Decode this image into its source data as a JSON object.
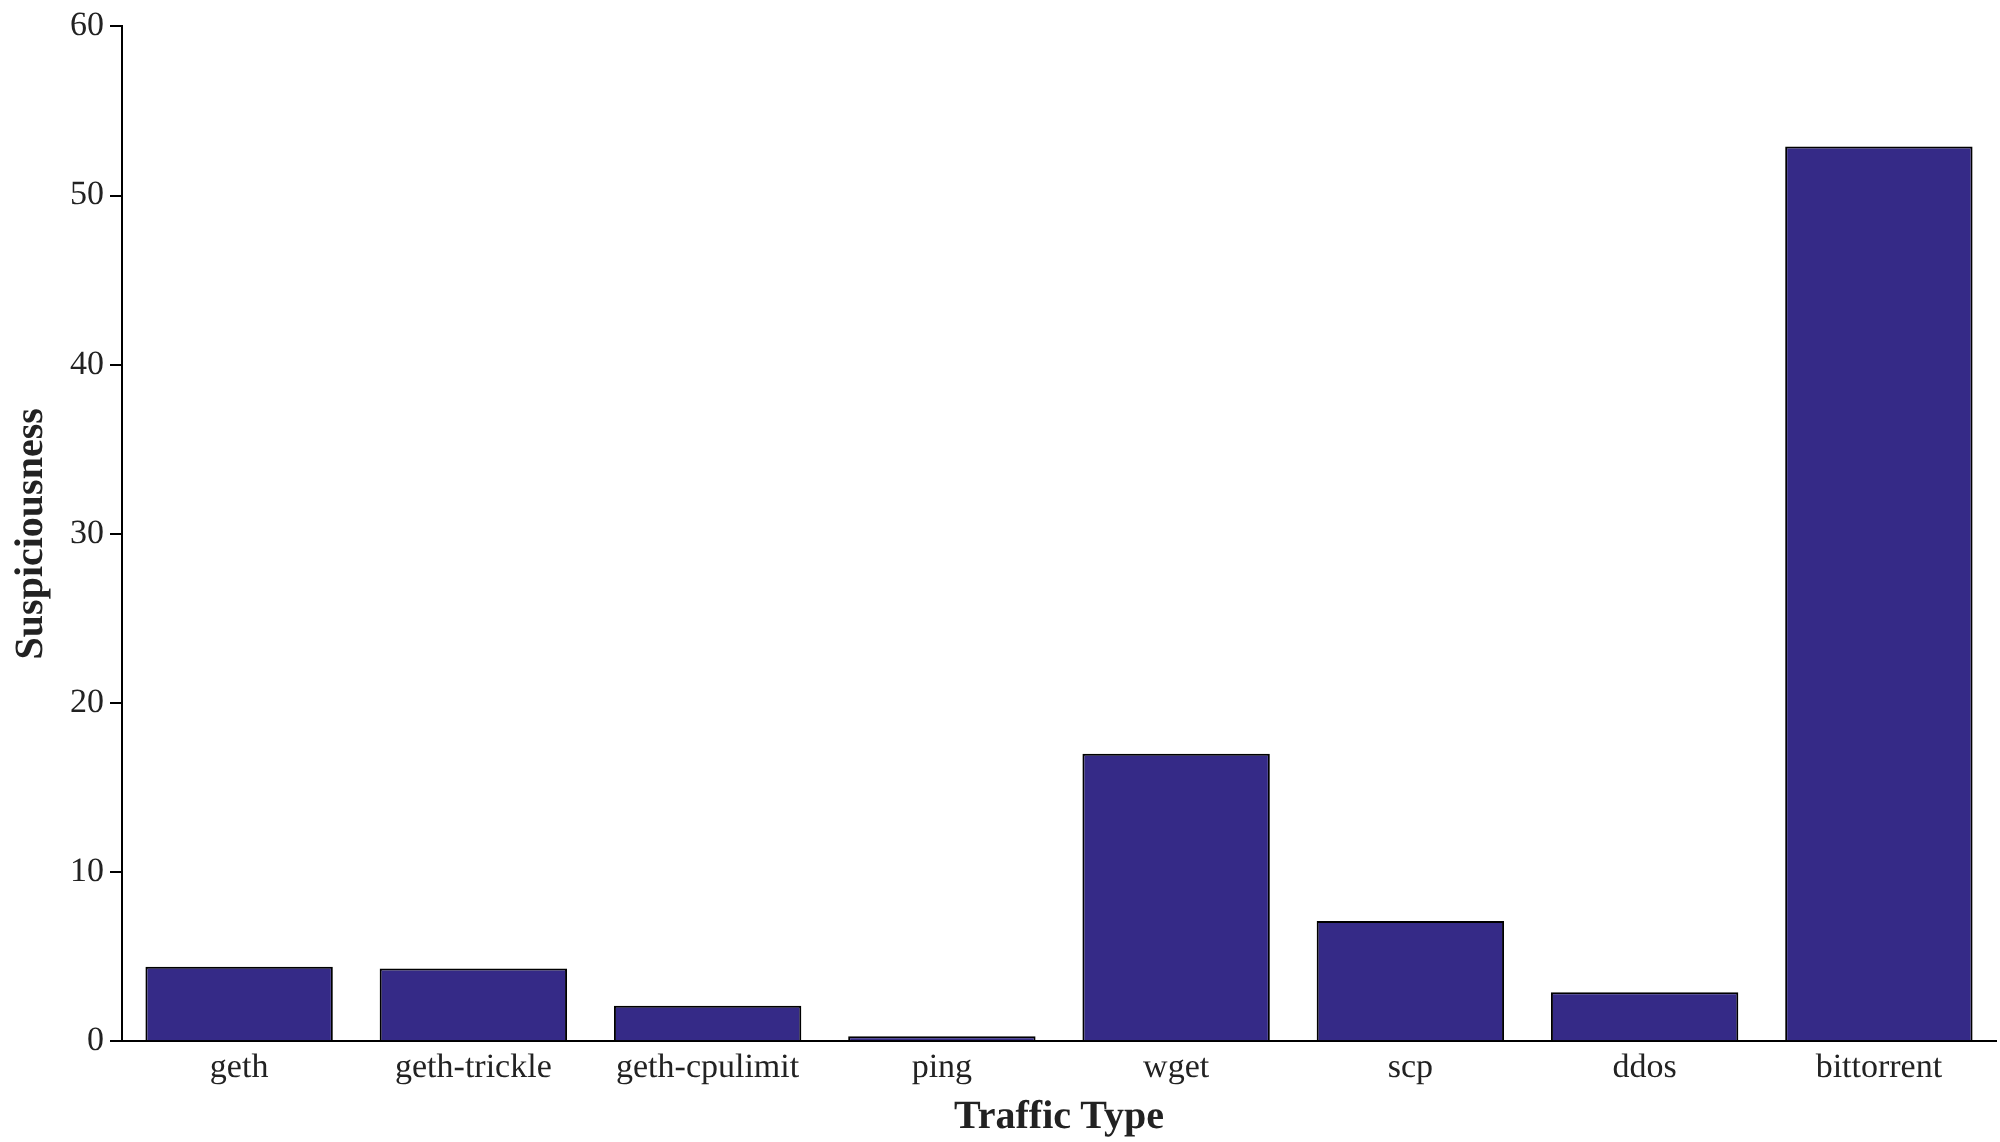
{
  "chart_data": {
    "type": "bar",
    "xlabel": "Traffic Type",
    "ylabel": "Suspiciousness",
    "categories": [
      "geth",
      "geth-trickle",
      "geth-cpulimit",
      "ping",
      "wget",
      "scp",
      "ddos",
      "bittorrent"
    ],
    "values": [
      4.4,
      4.3,
      2.1,
      0.3,
      17,
      7.1,
      2.9,
      52.9
    ],
    "color": "#352a87",
    "ylim": [
      0,
      60
    ],
    "yticks": [
      0,
      10,
      20,
      30,
      40,
      50,
      60
    ],
    "grid": false,
    "legend": false
  }
}
